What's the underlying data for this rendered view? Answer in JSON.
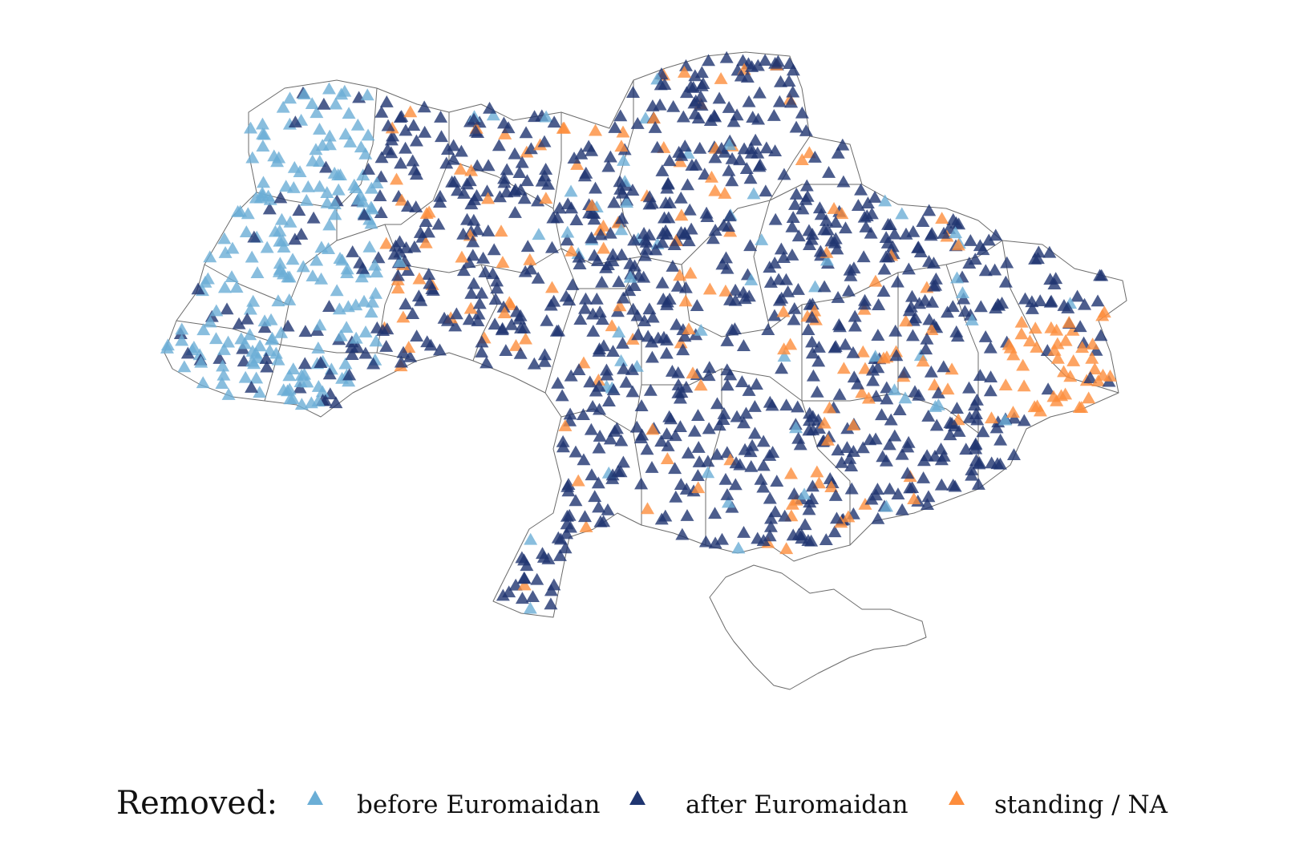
{
  "legend": {
    "title": "Removed:",
    "items": [
      {
        "key": "before",
        "label": "before Euromaidan",
        "color": "#6baed6",
        "icon": "triangle-marker-icon"
      },
      {
        "key": "after",
        "label": "after Euromaidan",
        "color": "#1f3570",
        "icon": "triangle-marker-icon"
      },
      {
        "key": "standing",
        "label": "standing / NA",
        "color": "#fd8d3c",
        "icon": "triangle-marker-icon"
      }
    ]
  },
  "map": {
    "subject": "Ukraine oblast boundaries with monument point markers",
    "marker_shape": "triangle",
    "marker_opacity": 0.8,
    "outline_color": "#6b6b6b"
  }
}
